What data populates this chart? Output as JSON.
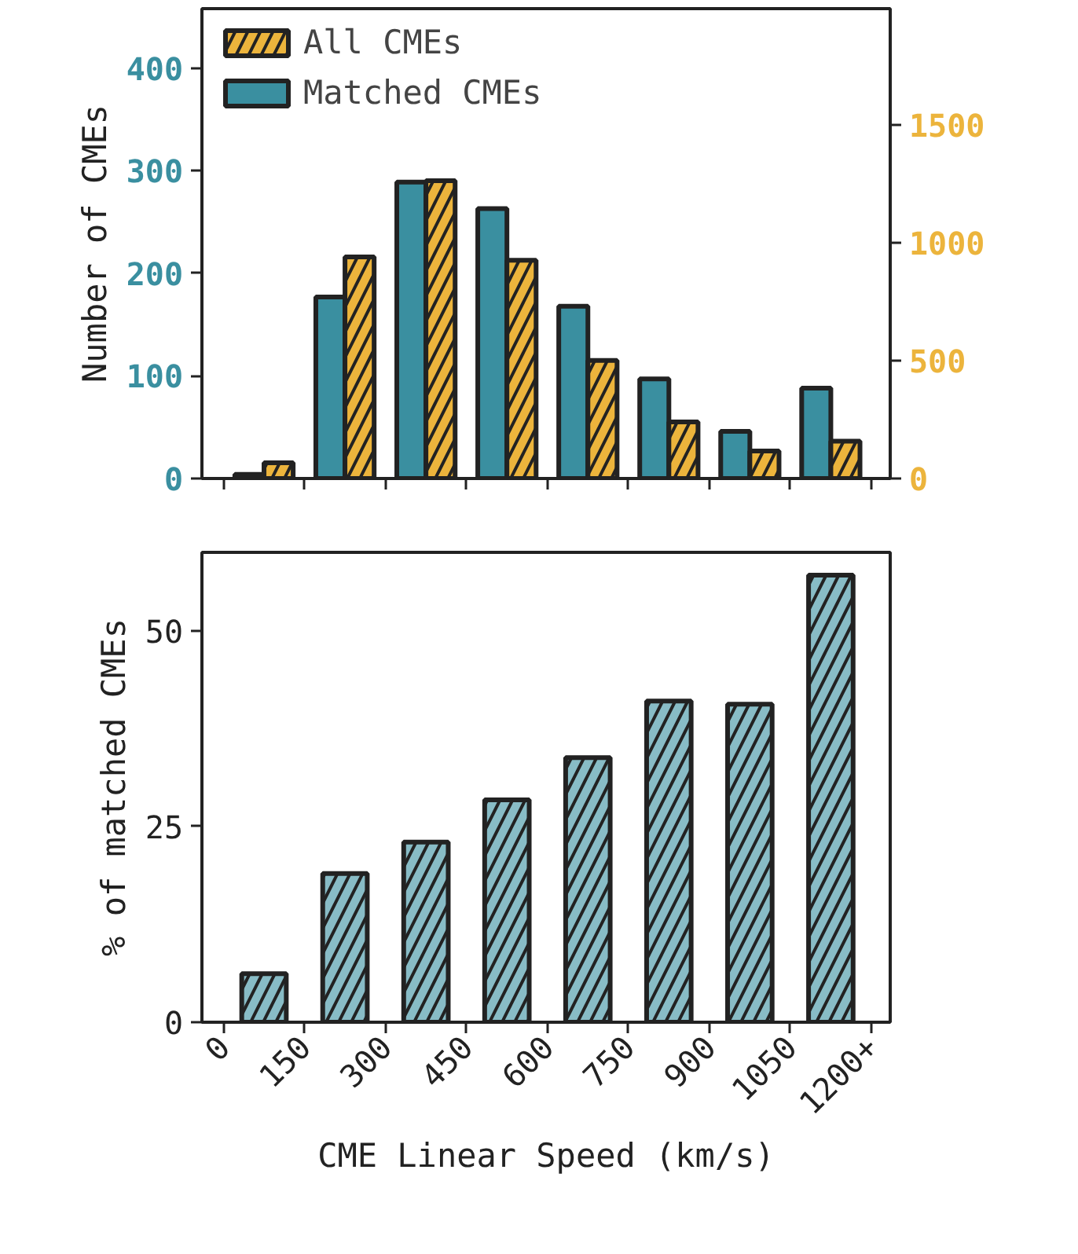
{
  "chart_data": [
    {
      "type": "bar",
      "ylabel": "Number of CMEs",
      "x": [
        75,
        225,
        375,
        525,
        675,
        825,
        975,
        1125
      ],
      "xlim": [
        -40,
        1235
      ],
      "xticks": [
        0,
        150,
        300,
        450,
        600,
        750,
        900,
        1050,
        1200
      ],
      "ylim": [
        0,
        458
      ],
      "yticks": [
        0,
        100,
        200,
        300,
        400
      ],
      "y2lim": [
        0,
        1993
      ],
      "y2ticks": [
        0,
        500,
        1000,
        1500
      ],
      "tick_labels": "y",
      "grid": false,
      "legend": "top left",
      "series": [
        {
          "name": "Matched CMEs",
          "color": "#3a8fa0",
          "values": [
            4,
            177,
            289,
            263,
            168,
            97,
            46,
            88
          ]
        },
        {
          "name": "All CMEs",
          "color": "#ecb43c",
          "axis": "y2",
          "values": [
            67,
            940,
            1263,
            926,
            501,
            240,
            117,
            158
          ]
        }
      ]
    },
    {
      "type": "bar",
      "ylabel": "% of matched CMEs",
      "xlabel": "CME Linear Speed (km/s)",
      "x": [
        75,
        225,
        375,
        525,
        675,
        825,
        975,
        1125
      ],
      "xlim": [
        -40,
        1235
      ],
      "xticks": [
        0,
        150,
        300,
        450,
        600,
        750,
        900,
        1050,
        {
          "value": 1200,
          "label": "1200+"
        }
      ],
      "ylim": [
        0,
        60
      ],
      "yticks": [
        0,
        25,
        50
      ],
      "grid": false,
      "series": [
        {
          "color": "#88bcc6",
          "values": [
            6.2,
            19.0,
            23.0,
            28.4,
            33.8,
            41.0,
            40.6,
            57.1
          ]
        }
      ]
    }
  ]
}
